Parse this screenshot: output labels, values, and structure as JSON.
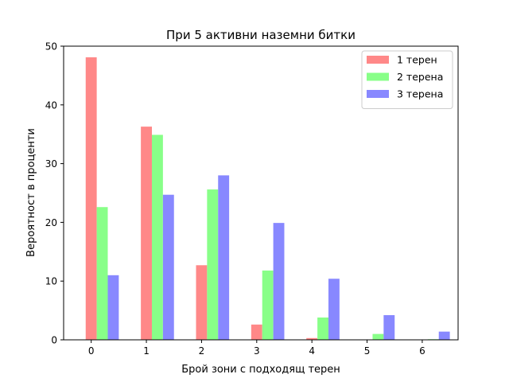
{
  "chart_data": {
    "type": "bar",
    "title": "При 5 активни наземни битки",
    "xlabel": "Брой зони с подходящ терен",
    "ylabel": "Вероятност в проценти",
    "categories": [
      "0",
      "1",
      "2",
      "3",
      "4",
      "5",
      "6"
    ],
    "x_ticks": [
      "0",
      "1",
      "2",
      "3",
      "4",
      "5",
      "6"
    ],
    "y_ticks": [
      "0",
      "10",
      "20",
      "30",
      "40",
      "50"
    ],
    "ylim": [
      0,
      50
    ],
    "grid": false,
    "legend_position": "top-right",
    "series": [
      {
        "name": "1 терен",
        "color": "#ff8888",
        "values": [
          48.1,
          36.3,
          12.7,
          2.6,
          0.3,
          0,
          0
        ]
      },
      {
        "name": "2 терена",
        "color": "#88ff88",
        "values": [
          22.6,
          34.9,
          25.6,
          11.8,
          3.8,
          1.0,
          0.1
        ]
      },
      {
        "name": "3 терена",
        "color": "#8888ff",
        "values": [
          11.0,
          24.7,
          28.0,
          19.9,
          10.4,
          4.2,
          1.4
        ]
      }
    ]
  }
}
